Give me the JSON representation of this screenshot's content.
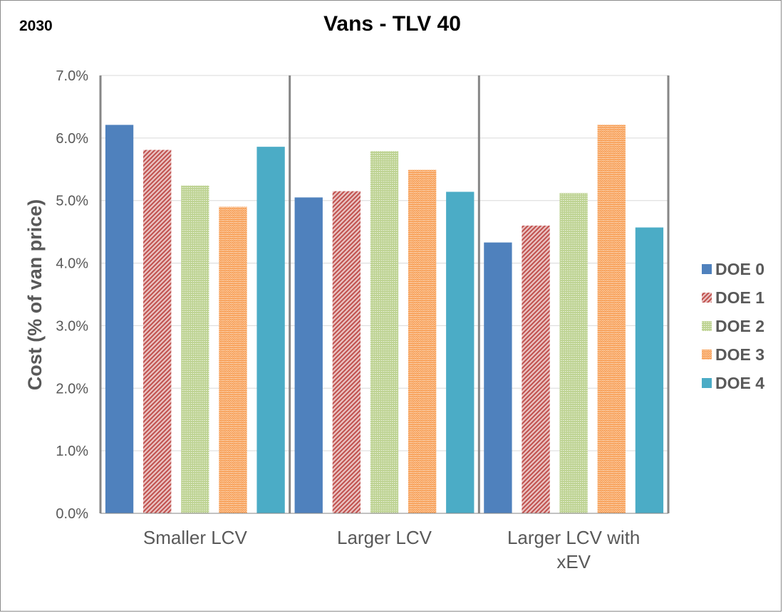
{
  "chart_data": {
    "type": "bar",
    "title": "Vans - TLV 40",
    "corner_label": "2030",
    "xlabel": "",
    "ylabel": "Cost (% of van price)",
    "ylim": [
      0,
      0.07
    ],
    "yticks": [
      0,
      0.01,
      0.02,
      0.03,
      0.04,
      0.05,
      0.06,
      0.07
    ],
    "ytick_labels": [
      "0.0%",
      "1.0%",
      "2.0%",
      "3.0%",
      "4.0%",
      "5.0%",
      "6.0%",
      "7.0%"
    ],
    "categories": [
      [
        "Smaller LCV"
      ],
      [
        "Larger LCV"
      ],
      [
        "Larger LCV with",
        "xEV"
      ]
    ],
    "series": [
      {
        "name": "DOE 0",
        "color": "#4f81bd",
        "pattern": "solid",
        "values": [
          0.0621,
          0.0505,
          0.0433
        ]
      },
      {
        "name": "DOE 1",
        "color": "#c0504d",
        "pattern": "diagonal",
        "values": [
          0.0581,
          0.0515,
          0.046
        ]
      },
      {
        "name": "DOE 2",
        "color": "#9bbb59",
        "pattern": "dots",
        "values": [
          0.0524,
          0.0579,
          0.0512
        ]
      },
      {
        "name": "DOE 3",
        "color": "#f79646",
        "pattern": "zigzag",
        "values": [
          0.049,
          0.0549,
          0.0621
        ]
      },
      {
        "name": "DOE 4",
        "color": "#4bacc6",
        "pattern": "solid",
        "values": [
          0.0586,
          0.0514,
          0.0457
        ]
      }
    ],
    "grid": true,
    "legend": "right"
  }
}
